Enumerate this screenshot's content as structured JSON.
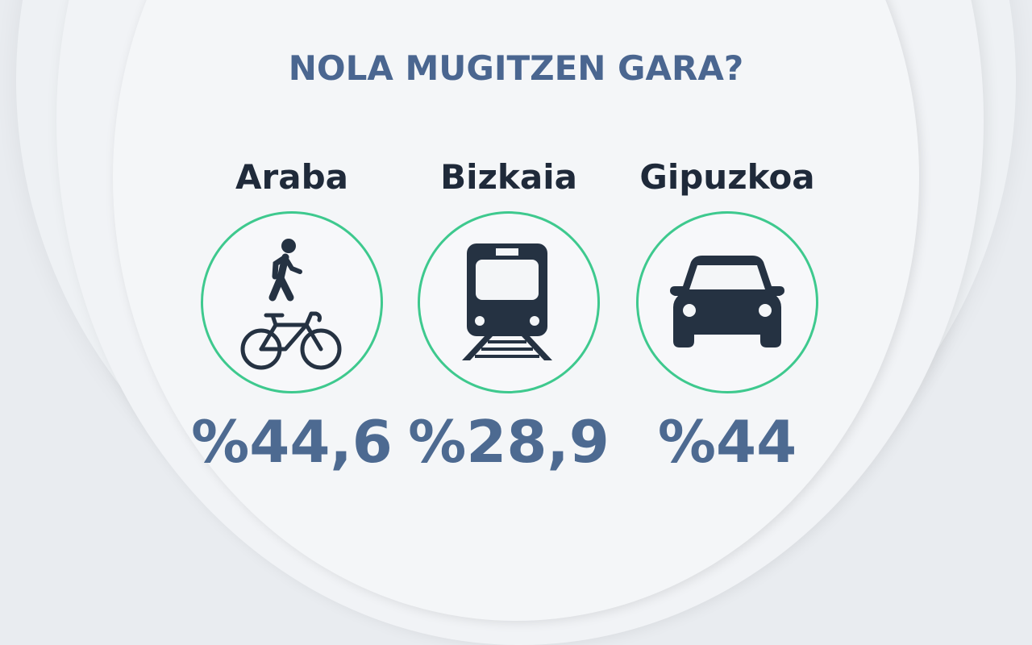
{
  "title": "NOLA MUGITZEN GARA?",
  "regions": [
    {
      "name": "Araba",
      "value": "%44,6",
      "icons": [
        "pedestrian-icon",
        "bicycle-icon"
      ]
    },
    {
      "name": "Bizkaia",
      "value": "%28,9",
      "icons": [
        "train-icon"
      ]
    },
    {
      "name": "Gipuzkoa",
      "value": "%44",
      "icons": [
        "car-icon"
      ]
    }
  ],
  "colors": {
    "title": "#4a6690",
    "value": "#4d6a91",
    "name": "#1f2a3a",
    "icon": "#253242",
    "circle": "#3ec98e"
  }
}
